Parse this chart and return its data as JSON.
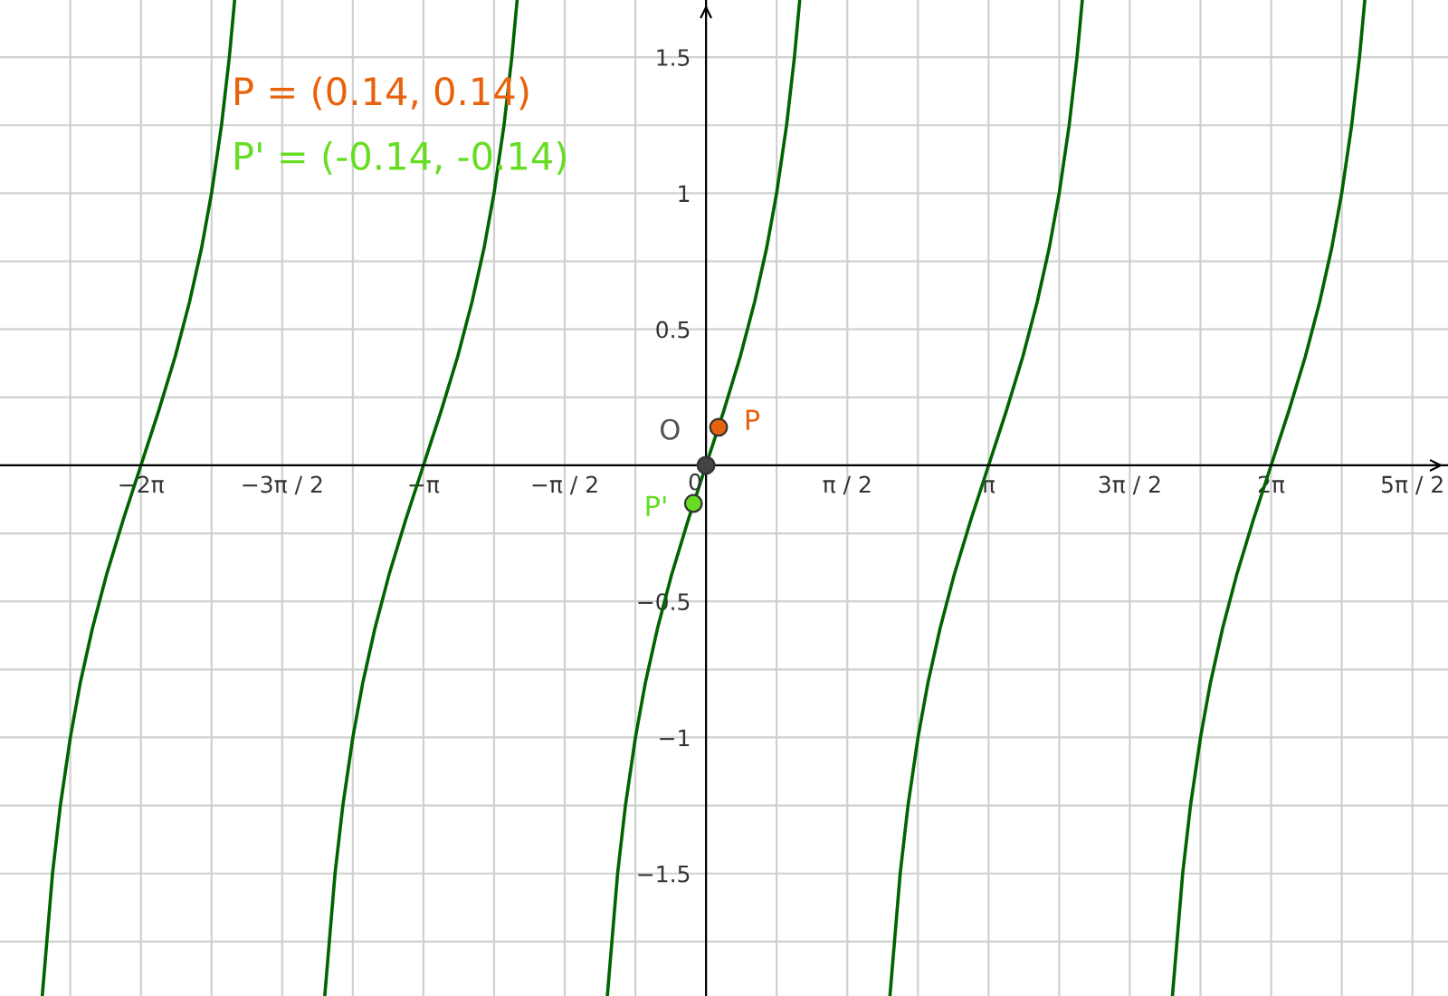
{
  "chart_data": {
    "type": "line",
    "xlim": [
      -7.85,
      8.25
    ],
    "ylim": [
      -1.95,
      1.71
    ],
    "xticks": [
      {
        "value": -7.069,
        "label": null
      },
      {
        "value": -6.283,
        "label": "−2π"
      },
      {
        "value": -5.498,
        "label": null
      },
      {
        "value": -4.712,
        "label": "−3π / 2"
      },
      {
        "value": -3.927,
        "label": null
      },
      {
        "value": -3.142,
        "label": "−π"
      },
      {
        "value": -2.356,
        "label": null
      },
      {
        "value": -1.571,
        "label": "−π / 2"
      },
      {
        "value": -0.785,
        "label": null
      },
      {
        "value": 0,
        "label": "0"
      },
      {
        "value": 0.785,
        "label": null
      },
      {
        "value": 1.571,
        "label": "π / 2"
      },
      {
        "value": 2.356,
        "label": null
      },
      {
        "value": 3.142,
        "label": "π"
      },
      {
        "value": 3.927,
        "label": null
      },
      {
        "value": 4.712,
        "label": "3π / 2"
      },
      {
        "value": 5.498,
        "label": null
      },
      {
        "value": 6.283,
        "label": "2π"
      },
      {
        "value": 7.069,
        "label": null
      },
      {
        "value": 7.854,
        "label": "5π / 2"
      }
    ],
    "yticks": [
      {
        "value": -1.75,
        "label": null
      },
      {
        "value": -1.5,
        "label": "−1.5"
      },
      {
        "value": -1.25,
        "label": null
      },
      {
        "value": -1,
        "label": "−1"
      },
      {
        "value": -0.75,
        "label": null
      },
      {
        "value": -0.5,
        "label": "−0.5"
      },
      {
        "value": -0.25,
        "label": null
      },
      {
        "value": 0,
        "label": null
      },
      {
        "value": 0.25,
        "label": null
      },
      {
        "value": 0.5,
        "label": "0.5"
      },
      {
        "value": 0.75,
        "label": null
      },
      {
        "value": 1,
        "label": "1"
      },
      {
        "value": 1.25,
        "label": null
      },
      {
        "value": 1.5,
        "label": "1.5"
      }
    ],
    "grid": true,
    "annotations": [
      "P = (0.14, 0.14)",
      "P' = (-0.14, -0.14)"
    ],
    "series": [
      {
        "color": "#006400",
        "x": [
          -7.38,
          -7.266,
          -7.179,
          -7.068,
          -6.958,
          -6.823,
          -6.664,
          -6.48,
          -6.283,
          -6.086,
          -5.902,
          -5.743,
          -5.608,
          -5.498,
          -5.387,
          -5.3,
          -5.241
        ],
        "values": [
          -1.95,
          -1.5,
          -1.25,
          -1,
          -0.8,
          -0.6,
          -0.4,
          -0.2,
          0,
          0.2,
          0.4,
          0.6,
          0.8,
          1,
          1.25,
          1.5,
          1.71
        ]
      },
      {
        "color": "#006400",
        "x": [
          -4.239,
          -4.125,
          -4.038,
          -3.927,
          -3.817,
          -3.682,
          -3.523,
          -3.339,
          -3.142,
          -2.945,
          -2.761,
          -2.602,
          -2.467,
          -2.357,
          -2.246,
          -2.159,
          -2.1
        ],
        "values": [
          -1.95,
          -1.5,
          -1.25,
          -1,
          -0.8,
          -0.6,
          -0.4,
          -0.2,
          0,
          0.2,
          0.4,
          0.6,
          0.8,
          1,
          1.25,
          1.5,
          1.71
        ]
      },
      {
        "color": "#006400",
        "x": [
          -1.097,
          -0.983,
          -0.896,
          -0.785,
          -0.675,
          -0.54,
          -0.381,
          -0.197,
          0,
          0.197,
          0.381,
          0.54,
          0.675,
          0.785,
          0.896,
          0.983,
          1.042
        ],
        "values": [
          -1.95,
          -1.5,
          -1.25,
          -1,
          -0.8,
          -0.6,
          -0.4,
          -0.2,
          0,
          0.2,
          0.4,
          0.6,
          0.8,
          1,
          1.25,
          1.5,
          1.71
        ]
      },
      {
        "color": "#006400",
        "x": [
          2.045,
          2.159,
          2.246,
          2.357,
          2.467,
          2.602,
          2.761,
          2.945,
          3.142,
          3.339,
          3.523,
          3.682,
          3.817,
          3.927,
          4.038,
          4.125,
          4.184
        ],
        "values": [
          -1.95,
          -1.5,
          -1.25,
          -1,
          -0.8,
          -0.6,
          -0.4,
          -0.2,
          0,
          0.2,
          0.4,
          0.6,
          0.8,
          1,
          1.25,
          1.5,
          1.71
        ]
      },
      {
        "color": "#006400",
        "x": [
          5.186,
          5.3,
          5.387,
          5.498,
          5.608,
          5.743,
          5.902,
          6.086,
          6.283,
          6.48,
          6.664,
          6.823,
          6.958,
          7.068,
          7.179,
          7.266,
          7.325
        ],
        "values": [
          -1.95,
          -1.5,
          -1.25,
          -1,
          -0.8,
          -0.6,
          -0.4,
          -0.2,
          0,
          0.2,
          0.4,
          0.6,
          0.8,
          1,
          1.25,
          1.5,
          1.71
        ]
      },
      {
        "type": "scatter",
        "name": "P",
        "color": "#e8620c",
        "x": [
          0.14
        ],
        "values": [
          0.14
        ]
      },
      {
        "type": "scatter",
        "name": "P'",
        "color": "#66dd22",
        "x": [
          -0.14
        ],
        "values": [
          -0.14
        ]
      },
      {
        "type": "scatter",
        "name": "O",
        "color": "#444444",
        "x": [
          0
        ],
        "values": [
          0
        ]
      }
    ]
  }
}
